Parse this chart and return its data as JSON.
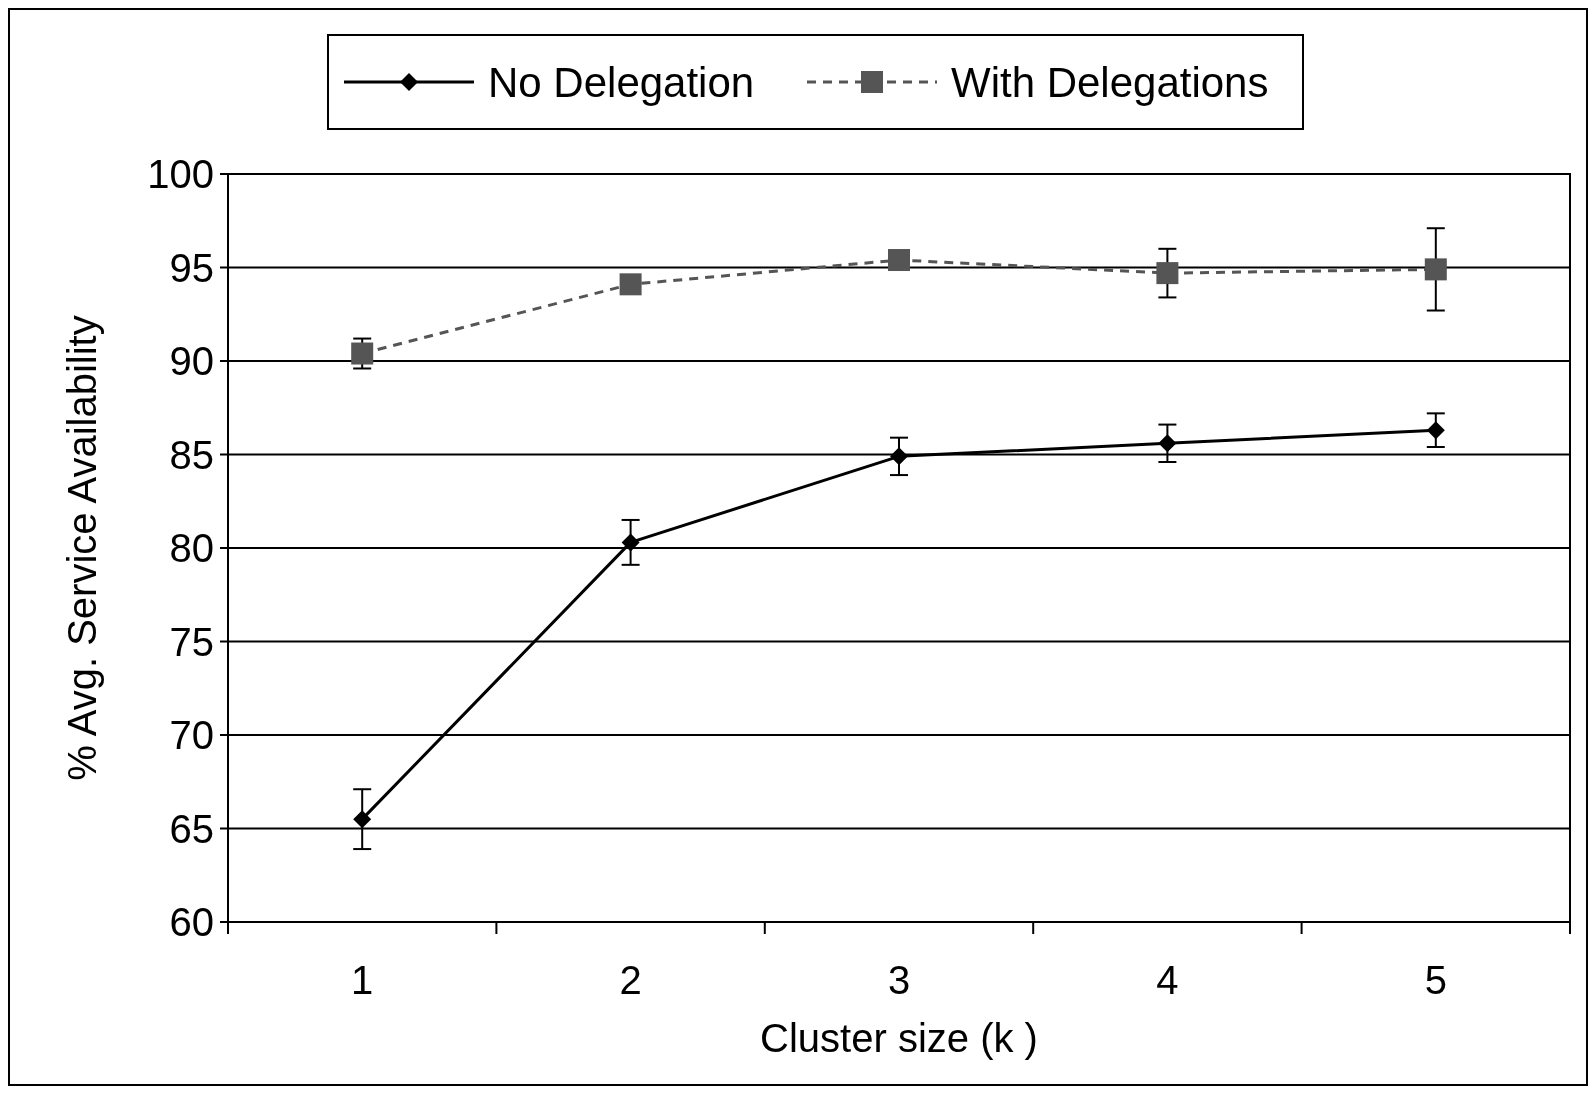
{
  "chart_data": {
    "type": "line",
    "xlabel": "Cluster size (k )",
    "ylabel": "% Avg. Service Availability",
    "categories": [
      "1",
      "2",
      "3",
      "4",
      "5"
    ],
    "ylim": [
      60,
      100
    ],
    "yticks": [
      60,
      65,
      70,
      75,
      80,
      85,
      90,
      95,
      100
    ],
    "grid": "y",
    "legend": "top",
    "series": [
      {
        "name": "No Delegation",
        "color": "#000000",
        "marker": "diamond",
        "line_style": "solid",
        "values": [
          65.5,
          80.3,
          84.9,
          85.6,
          86.3
        ],
        "errors": [
          1.6,
          1.2,
          1.0,
          1.0,
          0.9
        ]
      },
      {
        "name": "With Delegations",
        "color": "#555555",
        "marker": "square",
        "line_style": "dashed",
        "values": [
          90.4,
          94.1,
          95.4,
          94.7,
          94.9
        ],
        "errors": [
          0.8,
          null,
          null,
          1.3,
          2.2
        ]
      }
    ]
  }
}
